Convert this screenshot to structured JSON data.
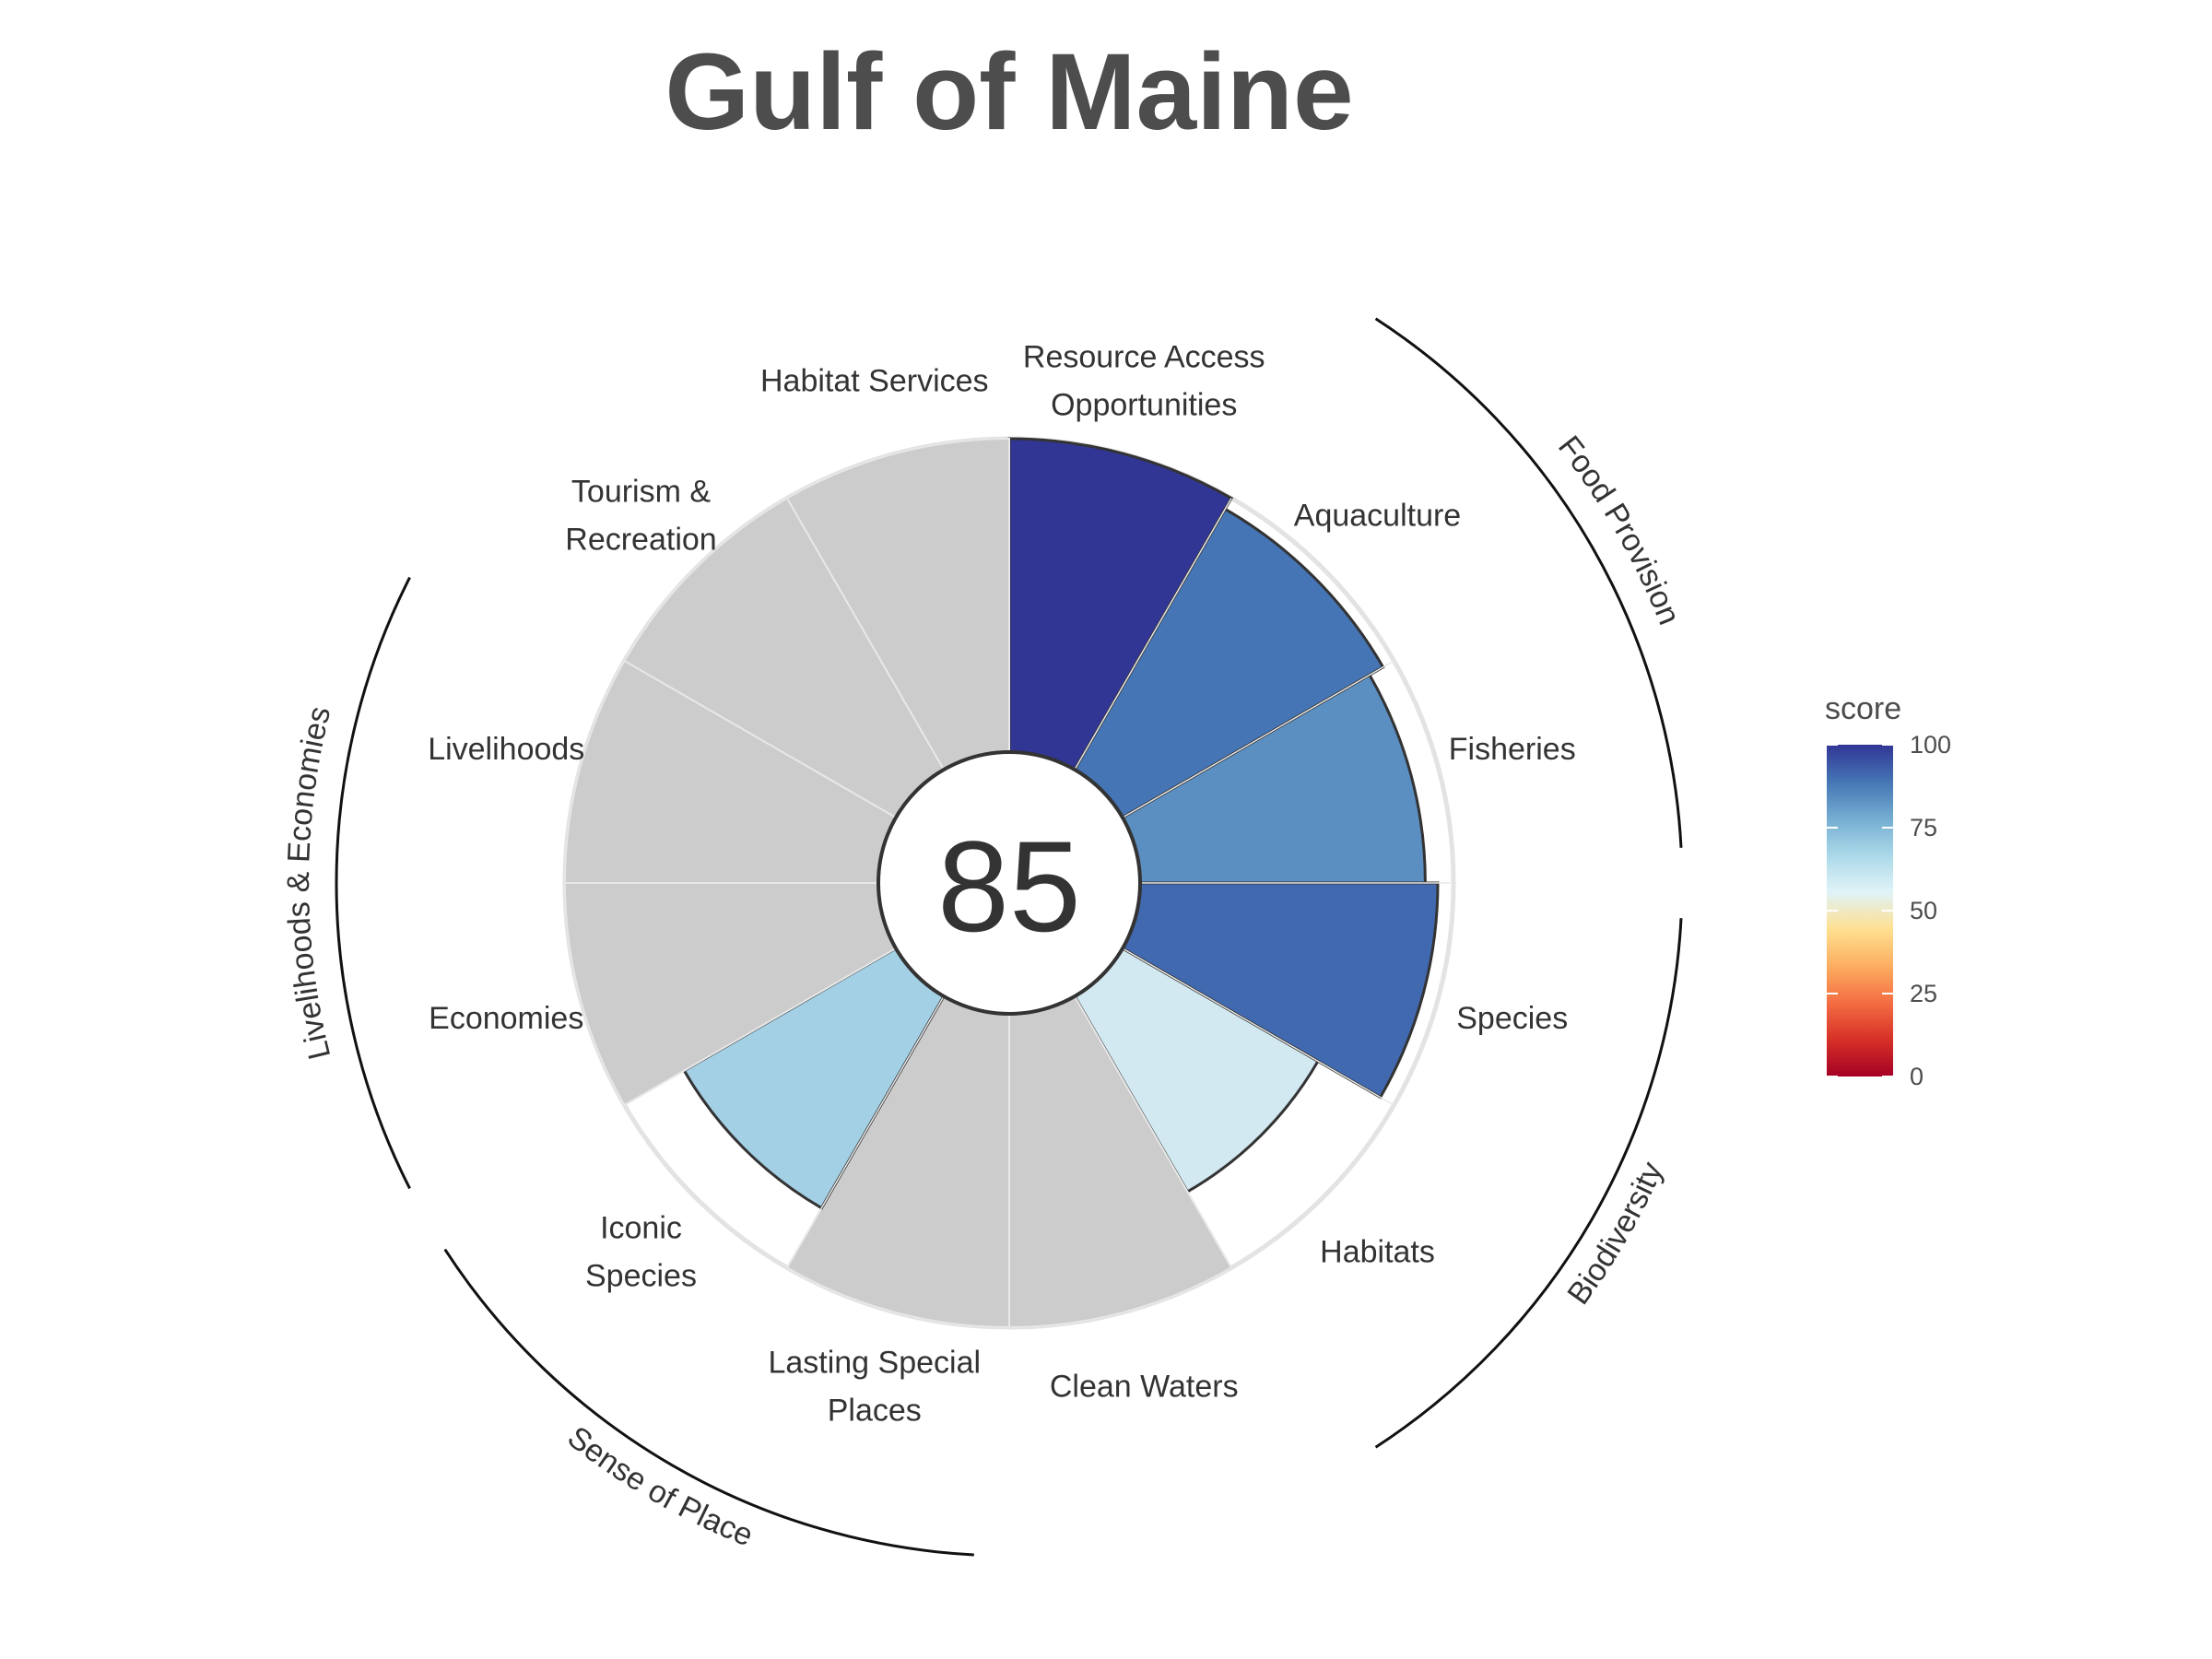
{
  "chart_data": {
    "type": "polar-bar",
    "title": "Gulf of Maine",
    "center_score": "85",
    "max_score": 100,
    "categories": [
      {
        "key": "resource_access",
        "lines": [
          "Resource Access",
          "Opportunities"
        ],
        "score": 100,
        "color": "#313695"
      },
      {
        "key": "aquaculture",
        "lines": [
          "Aquaculture"
        ],
        "score": 96,
        "color": "#4575b4"
      },
      {
        "key": "fisheries",
        "lines": [
          "Fisheries"
        ],
        "score": 91,
        "color": "#5b8ec1"
      },
      {
        "key": "species",
        "lines": [
          "Species"
        ],
        "score": 95,
        "color": "#4169b0"
      },
      {
        "key": "habitats",
        "lines": [
          "Habitats"
        ],
        "score": 72,
        "color": "#d2e9f1"
      },
      {
        "key": "clean_waters",
        "lines": [
          "Clean Waters"
        ],
        "score": null,
        "color": "#cccccc"
      },
      {
        "key": "lasting_special_places",
        "lines": [
          "Lasting Special",
          "Places"
        ],
        "score": null,
        "color": "#cccccc"
      },
      {
        "key": "iconic_species",
        "lines": [
          "Iconic",
          "Species"
        ],
        "score": 78,
        "color": "#a3d0e5"
      },
      {
        "key": "economies",
        "lines": [
          "Economies"
        ],
        "score": null,
        "color": "#cccccc"
      },
      {
        "key": "livelihoods",
        "lines": [
          "Livelihoods"
        ],
        "score": null,
        "color": "#cccccc"
      },
      {
        "key": "tourism",
        "lines": [
          "Tourism &",
          "Recreation"
        ],
        "score": null,
        "color": "#cccccc"
      },
      {
        "key": "habitat_services",
        "lines": [
          "Habitat Services"
        ],
        "score": null,
        "color": "#cccccc"
      }
    ],
    "groups": [
      {
        "label": "Food Provision",
        "categories": [
          "aquaculture",
          "fisheries"
        ]
      },
      {
        "label": "Biodiversity",
        "categories": [
          "species",
          "habitats"
        ]
      },
      {
        "label": "Sense of Place",
        "categories": [
          "lasting_special_places",
          "iconic_species"
        ]
      },
      {
        "label": "Livelihoods & Economies",
        "categories": [
          "economies",
          "livelihoods"
        ]
      }
    ],
    "legend": {
      "title": "score",
      "placement": "right",
      "ticks": [
        100,
        75,
        50,
        25,
        0
      ],
      "colors": [
        "#a50026",
        "#d73027",
        "#f46d43",
        "#fdae61",
        "#fee090",
        "#e0f3f8",
        "#abd9e9",
        "#74add1",
        "#4575b4",
        "#313695"
      ]
    }
  }
}
